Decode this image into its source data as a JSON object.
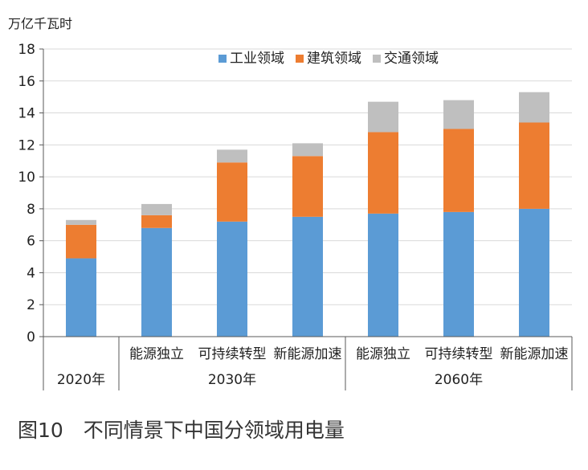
{
  "chart_data": {
    "type": "bar",
    "stacked": true,
    "unit_label": "万亿千瓦时",
    "caption": "图10　不同情景下中国分领域用电量",
    "ylim": [
      0,
      18
    ],
    "yticks": [
      0,
      2,
      4,
      6,
      8,
      10,
      12,
      14,
      16,
      18
    ],
    "grid": true,
    "legend_position": "top-center",
    "categories": [
      "2020年",
      "能源独立",
      "可持续转型",
      "新能源加速",
      "能源独立",
      "可持续转型",
      "新能源加速"
    ],
    "groups": [
      {
        "label": "2020年",
        "categories": [
          0
        ]
      },
      {
        "label": "2030年",
        "categories": [
          1,
          2,
          3
        ]
      },
      {
        "label": "2060年",
        "categories": [
          4,
          5,
          6
        ]
      }
    ],
    "series": [
      {
        "name": "工业领域",
        "color": "#5b9bd5",
        "values": [
          4.9,
          6.8,
          7.2,
          7.5,
          7.7,
          7.8,
          8.0
        ]
      },
      {
        "name": "建筑领域",
        "color": "#ed7d31",
        "values": [
          2.1,
          0.8,
          3.7,
          3.8,
          5.1,
          5.2,
          5.4
        ]
      },
      {
        "name": "交通领域",
        "color": "#bfbfbf",
        "values": [
          0.3,
          0.7,
          0.8,
          0.8,
          1.9,
          1.8,
          1.9
        ]
      }
    ]
  }
}
